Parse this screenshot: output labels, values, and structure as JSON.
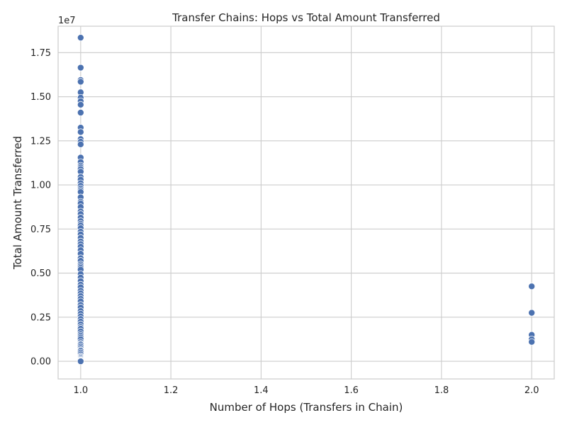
{
  "chart_data": {
    "type": "scatter",
    "title": "Transfer Chains: Hops vs Total Amount Transferred",
    "xlabel": "Number of Hops (Transfers in Chain)",
    "ylabel": "Total Amount Transferred",
    "y_offset_label": "1e7",
    "xlim": [
      0.95,
      2.05
    ],
    "ylim": [
      -1000000,
      19000000
    ],
    "grid": true,
    "x_ticks": [
      1.0,
      1.2,
      1.4,
      1.6,
      1.8,
      2.0
    ],
    "x_tick_labels": [
      "1.0",
      "1.2",
      "1.4",
      "1.6",
      "1.8",
      "2.0"
    ],
    "y_ticks": [
      0,
      2500000,
      5000000,
      7500000,
      10000000,
      12500000,
      15000000,
      17500000
    ],
    "y_tick_labels": [
      "0.00",
      "0.25",
      "0.50",
      "0.75",
      "1.00",
      "1.25",
      "1.50",
      "1.75"
    ],
    "point_color": "#4c72b0",
    "series": [
      {
        "x": [
          1,
          1,
          1,
          1,
          1,
          1,
          1,
          1,
          1,
          1,
          1,
          1,
          1,
          1,
          1,
          1,
          1,
          1,
          1,
          1,
          1,
          1,
          1,
          1,
          1,
          1,
          1,
          1,
          1,
          1,
          1,
          1,
          1,
          1,
          1,
          1,
          1,
          1,
          1,
          1,
          1,
          1,
          1,
          1,
          1,
          1,
          1,
          1,
          1,
          1,
          1,
          1,
          1,
          1,
          1,
          1,
          1,
          1,
          1,
          1,
          1,
          1,
          1,
          1,
          1,
          1,
          1,
          1,
          1,
          1,
          1,
          1,
          1,
          1,
          1,
          1,
          1,
          1,
          1,
          1,
          1,
          1,
          1,
          1,
          1,
          1,
          1,
          1,
          1,
          1,
          1,
          1,
          1,
          1,
          1,
          2,
          2,
          2,
          2,
          2
        ],
        "y": [
          18350000,
          16650000,
          15950000,
          15850000,
          15250000,
          14950000,
          14750000,
          14550000,
          14100000,
          13250000,
          13000000,
          12600000,
          12450000,
          12300000,
          11550000,
          11300000,
          11100000,
          11000000,
          10900000,
          10750000,
          10450000,
          10300000,
          10100000,
          9950000,
          9800000,
          9700000,
          9600000,
          9300000,
          9050000,
          8950000,
          8750000,
          8500000,
          8350000,
          8150000,
          7950000,
          7800000,
          7700000,
          7550000,
          7350000,
          7200000,
          7000000,
          6800000,
          6650000,
          6500000,
          6300000,
          6100000,
          5850000,
          5700000,
          5500000,
          5400000,
          5300000,
          5200000,
          4950000,
          4750000,
          4550000,
          4350000,
          4200000,
          4000000,
          3850000,
          3700000,
          3550000,
          3400000,
          3200000,
          3050000,
          2850000,
          2700000,
          2550000,
          2400000,
          2250000,
          2100000,
          1950000,
          1850000,
          1700000,
          1550000,
          1450000,
          1350000,
          1250000,
          1100000,
          1000000,
          950000,
          850000,
          750000,
          650000,
          600000,
          500000,
          400000,
          300000,
          250000,
          200000,
          150000,
          100000,
          60000,
          30000,
          10000,
          0,
          4250000,
          2750000,
          1500000,
          1250000,
          1100000
        ]
      }
    ]
  }
}
